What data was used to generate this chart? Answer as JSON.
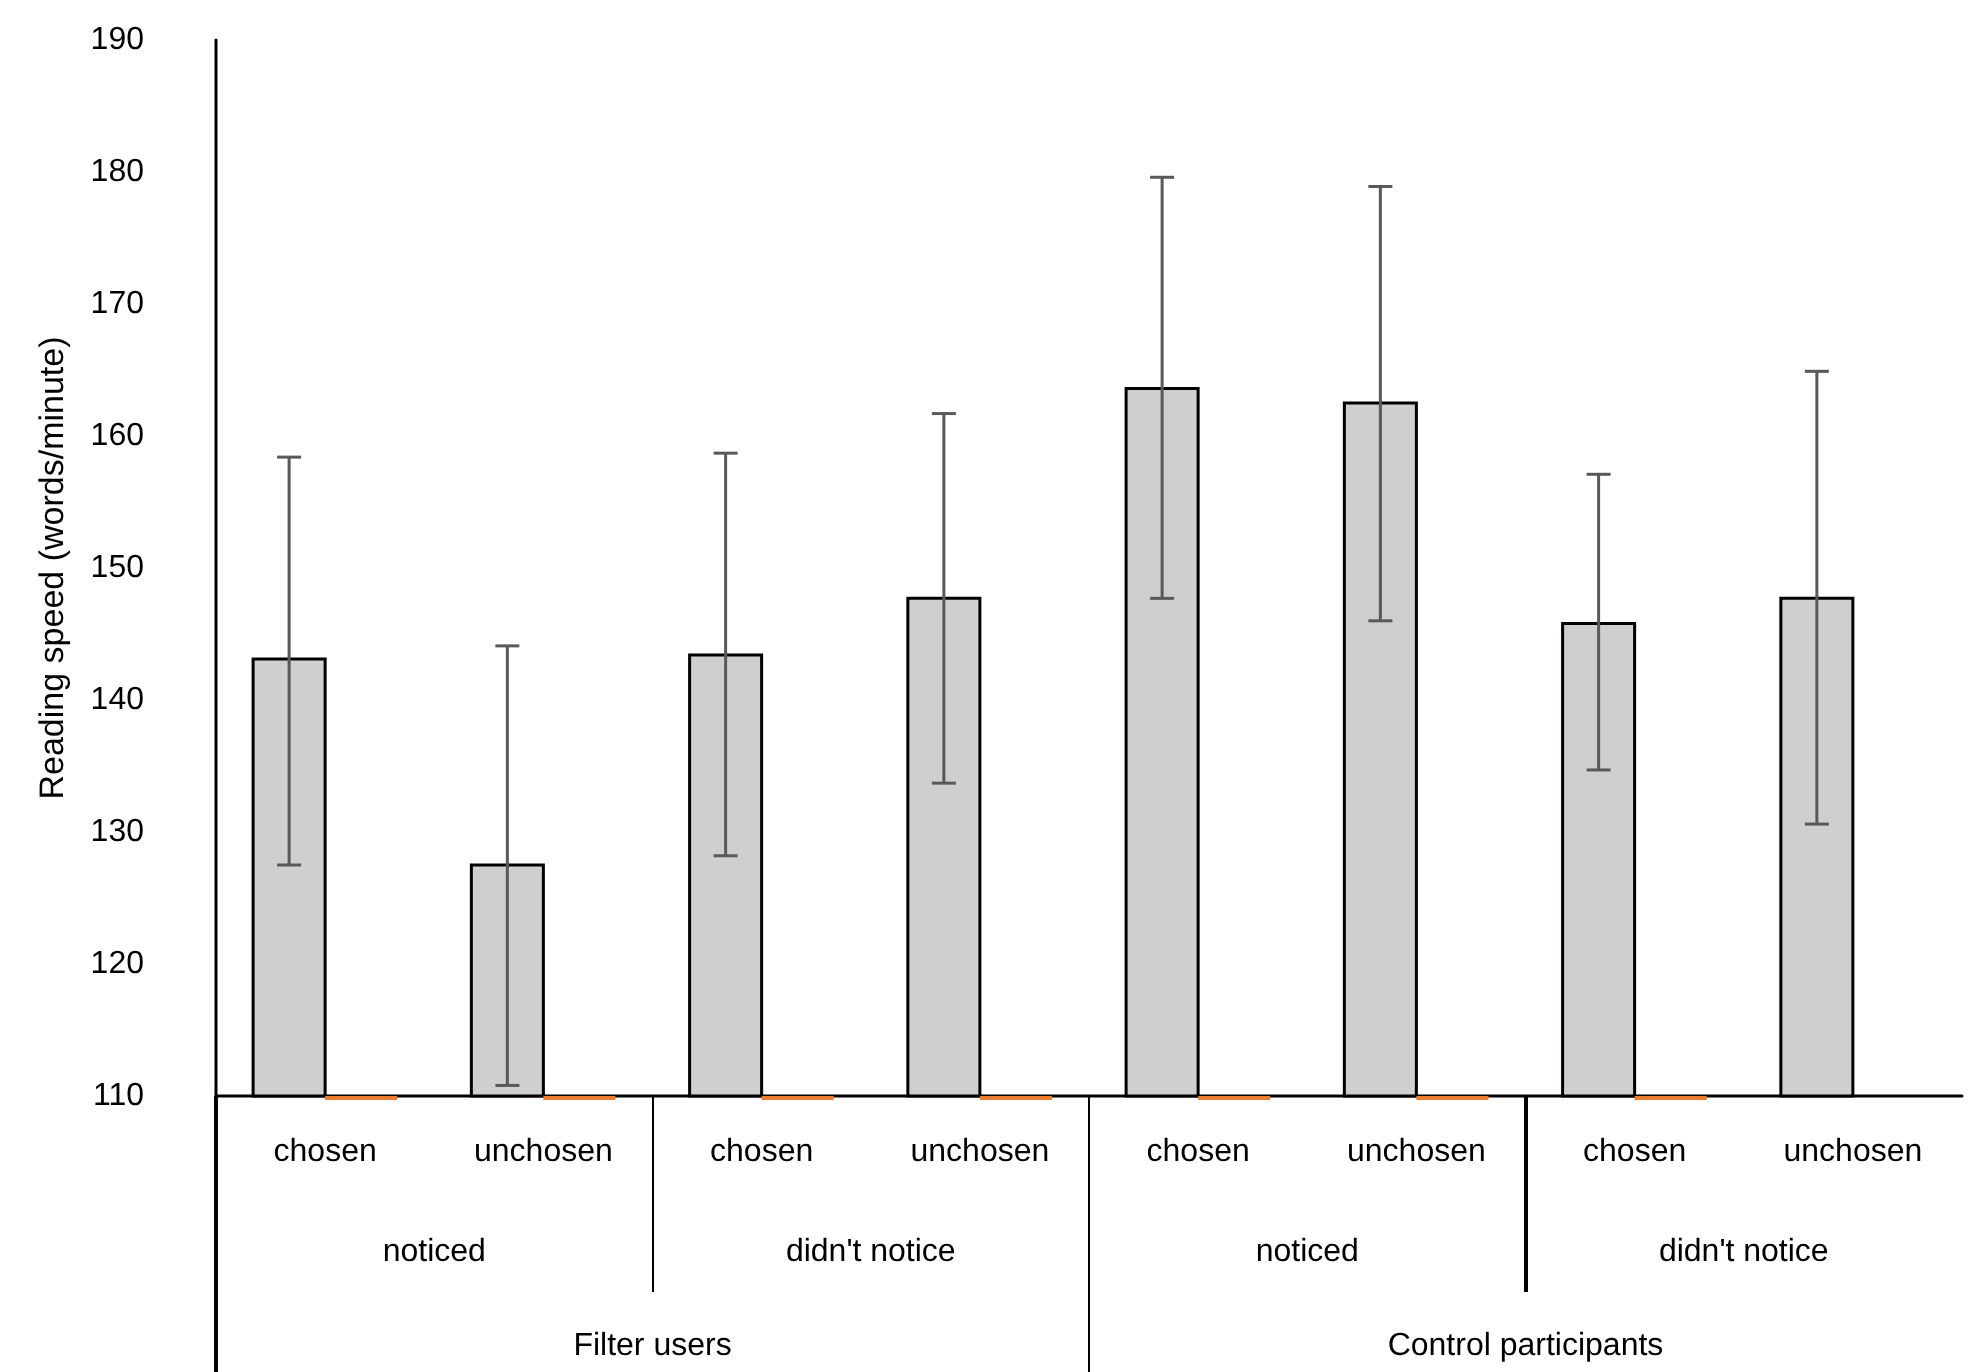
{
  "chart_data": {
    "type": "bar",
    "ylabel": "Reading speed (words/minute)",
    "categories": [
      "chosen",
      "unchosen",
      "chosen",
      "unchosen",
      "chosen",
      "unchosen",
      "chosen",
      "unchosen"
    ],
    "series": [
      {
        "color": "#d0cece",
        "values": [
          143.1,
          127.5,
          143.4,
          147.7,
          163.6,
          162.5,
          145.8,
          147.7
        ],
        "errors": [
          [
            127.5,
            158.4
          ],
          [
            110.8,
            144.1
          ],
          [
            128.2,
            158.7
          ],
          [
            133.7,
            161.7
          ],
          [
            147.7,
            179.6
          ],
          [
            146.0,
            178.9
          ],
          [
            134.7,
            157.1
          ],
          [
            130.6,
            164.9
          ]
        ]
      },
      {
        "color": "#ed7d31",
        "values": [
          110,
          110,
          110,
          110,
          110,
          110,
          110,
          null
        ]
      }
    ],
    "ylim": [
      110,
      190
    ],
    "yticks": [
      110,
      120,
      130,
      140,
      150,
      160,
      170,
      180,
      190
    ],
    "grid": false,
    "annotations": [
      "noticed",
      "didn't notice",
      "noticed",
      "didn't notice",
      "Filter users",
      "Control participants"
    ]
  }
}
